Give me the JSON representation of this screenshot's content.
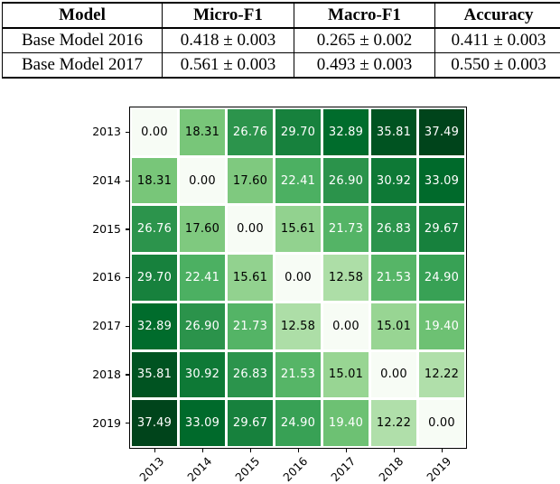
{
  "table": {
    "headers": [
      "Model",
      "Micro-F1",
      "Macro-F1",
      "Accuracy"
    ],
    "rows": [
      [
        "Base Model 2016",
        "0.418 ± 0.003",
        "0.265 ± 0.002",
        "0.411 ± 0.003"
      ],
      [
        "Base Model 2017",
        "0.561 ± 0.003",
        "0.493 ± 0.003",
        "0.550 ± 0.003"
      ]
    ]
  },
  "chart_data": {
    "type": "heatmap",
    "x_labels": [
      "2013",
      "2014",
      "2015",
      "2016",
      "2017",
      "2018",
      "2019"
    ],
    "y_labels": [
      "2013",
      "2014",
      "2015",
      "2016",
      "2017",
      "2018",
      "2019"
    ],
    "values": [
      [
        0.0,
        18.31,
        26.76,
        29.7,
        32.89,
        35.81,
        37.49
      ],
      [
        18.31,
        0.0,
        17.6,
        22.41,
        26.9,
        30.92,
        33.09
      ],
      [
        26.76,
        17.6,
        0.0,
        15.61,
        21.73,
        26.83,
        29.67
      ],
      [
        29.7,
        22.41,
        15.61,
        0.0,
        12.58,
        21.53,
        24.9
      ],
      [
        32.89,
        26.9,
        21.73,
        12.58,
        0.0,
        15.01,
        19.4
      ],
      [
        35.81,
        30.92,
        26.83,
        21.53,
        15.01,
        0.0,
        12.22
      ],
      [
        37.49,
        33.09,
        29.67,
        24.9,
        19.4,
        12.22,
        0.0
      ]
    ],
    "vmin": 0,
    "vmax": 37.49,
    "value_decimals": 2,
    "colormap": {
      "name": "Greens",
      "stops": [
        "#f7fcf5",
        "#e5f5e0",
        "#c7e9c0",
        "#a1d99b",
        "#74c476",
        "#41ab5d",
        "#238b45",
        "#006d2c",
        "#00441b"
      ]
    },
    "annotation_text_colors": {
      "low": "#000000",
      "high": "#ffffff"
    },
    "grid_line_color": "#ffffff",
    "axis_border_color": "#000000",
    "x_tick_rotation_deg": 45,
    "legend": "none",
    "grid": "white cell separators"
  }
}
